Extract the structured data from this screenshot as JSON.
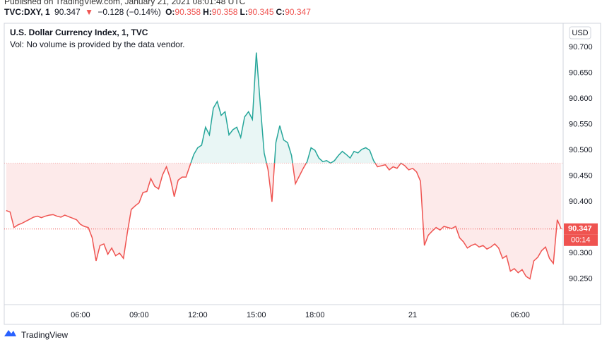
{
  "header": {
    "published": "Published on TradingView.com, January 21, 2021 08:01:48 UTC",
    "symbol": "TVC:DXY, 1",
    "last": "90.347",
    "arrow": "▼",
    "change": "−0.128 (−0.14%)",
    "ohlc": [
      {
        "label": "O:",
        "value": "90.358"
      },
      {
        "label": "H:",
        "value": "90.358"
      },
      {
        "label": "L:",
        "value": "90.345"
      },
      {
        "label": "C:",
        "value": "90.347"
      }
    ],
    "currency": "USD",
    "logo": "TradingView"
  },
  "chart_data": {
    "type": "baseline",
    "title": "U.S. Dollar Currency Index, 1, TVC",
    "subtitle": "Vol: No volume is provided by the data vendor.",
    "x": [
      2.2,
      2.4,
      2.6,
      2.8,
      3.0,
      3.2,
      3.4,
      3.6,
      3.8,
      4.0,
      4.2,
      4.4,
      4.6,
      4.8,
      5.0,
      5.2,
      5.4,
      5.6,
      5.8,
      6.0,
      6.2,
      6.4,
      6.6,
      6.8,
      7.0,
      7.2,
      7.4,
      7.6,
      7.8,
      8.0,
      8.2,
      8.4,
      8.6,
      8.8,
      9.0,
      9.2,
      9.4,
      9.6,
      9.8,
      10.0,
      10.2,
      10.4,
      10.6,
      10.8,
      11.0,
      11.2,
      11.4,
      11.6,
      11.8,
      12.0,
      12.2,
      12.4,
      12.6,
      12.8,
      13.0,
      13.2,
      13.4,
      13.6,
      13.8,
      14.0,
      14.2,
      14.4,
      14.6,
      14.8,
      15.0,
      15.2,
      15.4,
      15.6,
      15.8,
      16.0,
      16.2,
      16.4,
      16.6,
      16.8,
      17.0,
      17.2,
      17.4,
      17.6,
      17.8,
      18.0,
      18.2,
      18.4,
      18.6,
      18.8,
      19.0,
      19.2,
      19.4,
      19.6,
      19.8,
      20.0,
      20.2,
      20.4,
      20.6,
      20.8,
      21.0,
      21.2,
      21.4,
      21.6,
      21.8,
      22.0,
      22.2,
      22.4,
      22.6,
      22.8,
      23.0,
      23.2,
      23.4,
      23.6,
      23.8,
      24.0,
      24.2,
      24.4,
      24.6,
      24.8,
      25.0,
      25.2,
      25.4,
      25.6,
      25.8,
      26.0,
      26.2,
      26.4,
      26.6,
      26.8,
      27.0,
      27.2,
      27.4,
      27.6,
      27.8,
      28.0,
      28.2,
      28.4,
      28.6,
      28.8,
      29.0,
      29.2,
      29.4,
      29.6,
      29.8,
      30.0,
      30.2,
      30.4,
      30.6
    ],
    "values": [
      90.383,
      90.38,
      90.35,
      90.355,
      90.358,
      90.362,
      90.366,
      90.37,
      90.372,
      90.369,
      90.372,
      90.374,
      90.375,
      90.372,
      90.37,
      90.374,
      90.371,
      90.368,
      90.365,
      90.356,
      90.352,
      90.35,
      90.33,
      90.285,
      90.315,
      90.318,
      90.298,
      90.31,
      90.295,
      90.3,
      90.29,
      90.34,
      90.385,
      90.392,
      90.398,
      90.418,
      90.42,
      90.445,
      90.43,
      90.425,
      90.452,
      90.468,
      90.445,
      90.41,
      90.442,
      90.448,
      90.448,
      90.47,
      90.492,
      90.505,
      90.51,
      90.545,
      90.53,
      90.582,
      90.595,
      90.568,
      90.575,
      90.53,
      90.54,
      90.545,
      90.525,
      90.565,
      90.575,
      90.56,
      90.69,
      90.59,
      90.495,
      90.462,
      90.4,
      90.515,
      90.548,
      90.52,
      90.515,
      90.49,
      90.435,
      90.45,
      90.465,
      90.478,
      90.505,
      90.5,
      90.485,
      90.478,
      90.48,
      90.475,
      90.48,
      90.49,
      90.498,
      90.492,
      90.485,
      90.498,
      90.495,
      90.502,
      90.505,
      90.5,
      90.48,
      90.468,
      90.47,
      90.472,
      90.462,
      90.468,
      90.465,
      90.475,
      90.47,
      90.462,
      90.465,
      90.458,
      90.44,
      90.315,
      90.335,
      90.343,
      90.35,
      90.345,
      90.352,
      90.35,
      90.348,
      90.352,
      90.33,
      90.322,
      90.31,
      90.315,
      90.318,
      90.312,
      90.315,
      90.308,
      90.312,
      90.318,
      90.31,
      90.29,
      90.295,
      90.265,
      90.27,
      90.262,
      90.268,
      90.255,
      90.25,
      90.285,
      90.292,
      90.305,
      90.312,
      90.29,
      90.28,
      90.365,
      90.347
    ],
    "baseline": 90.475,
    "last_value": 90.347,
    "countdown": "00:14",
    "up_color": "#26a69a",
    "down_color": "#ef5350",
    "xlim": [
      2.1,
      30.7
    ],
    "xticks": [
      {
        "value": 6,
        "label": "06:00"
      },
      {
        "value": 9,
        "label": "09:00"
      },
      {
        "value": 12,
        "label": "12:00"
      },
      {
        "value": 15,
        "label": "15:00"
      },
      {
        "value": 18,
        "label": "18:00"
      },
      {
        "value": 23,
        "label": "21"
      },
      {
        "value": 28.5,
        "label": "06:00"
      }
    ],
    "ylim": [
      90.2,
      90.747
    ],
    "yticks": [
      {
        "value": 90.25,
        "label": "90.250"
      },
      {
        "value": 90.3,
        "label": "90.300"
      },
      {
        "value": 90.35,
        "label": "90.350"
      },
      {
        "value": 90.4,
        "label": "90.400"
      },
      {
        "value": 90.45,
        "label": "90.450"
      },
      {
        "value": 90.5,
        "label": "90.500"
      },
      {
        "value": 90.55,
        "label": "90.550"
      },
      {
        "value": 90.6,
        "label": "90.600"
      },
      {
        "value": 90.65,
        "label": "90.650"
      },
      {
        "value": 90.7,
        "label": "90.700"
      }
    ],
    "grid": false
  }
}
